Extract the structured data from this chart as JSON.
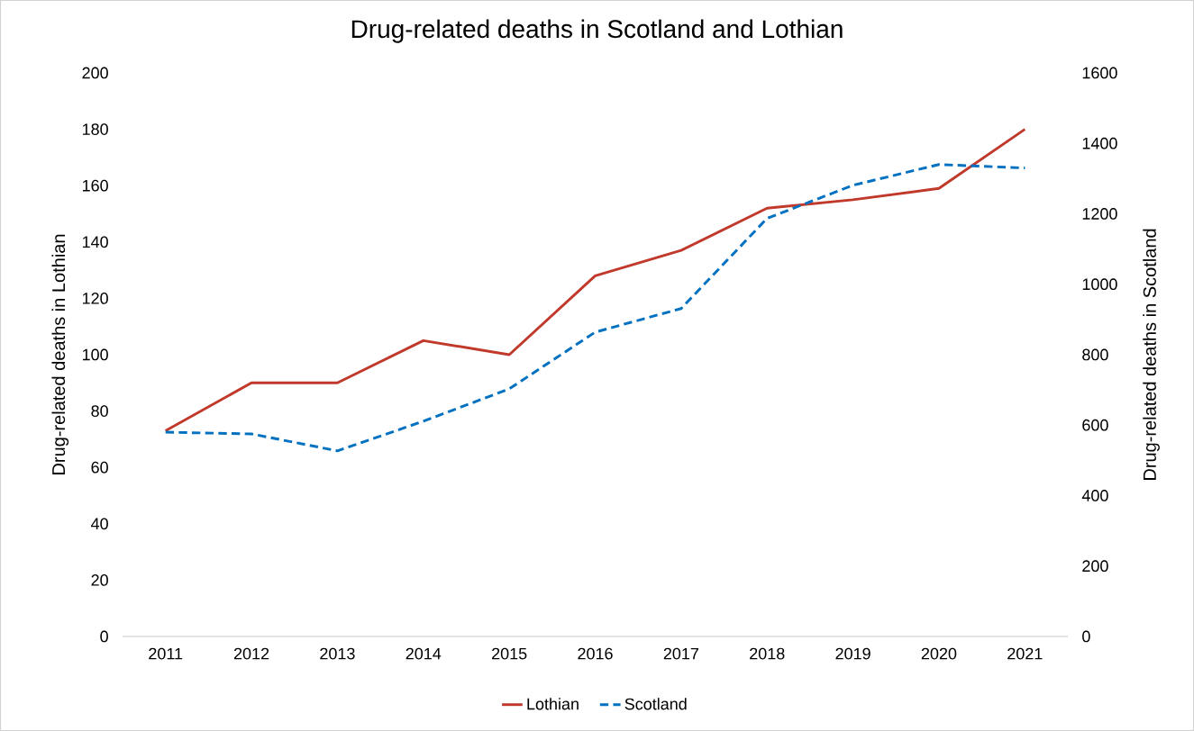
{
  "chart_data": {
    "type": "line",
    "title": "Drug-related deaths in Scotland and Lothian",
    "ylabel": "Drug-related deaths in Lothian",
    "y2label": "Drug-related deaths in Scotland",
    "categories": [
      "2011",
      "2012",
      "2013",
      "2014",
      "2015",
      "2016",
      "2017",
      "2018",
      "2019",
      "2020",
      "2021"
    ],
    "series": [
      {
        "name": "Lothian",
        "color": "#c0392b",
        "line_style": "solid",
        "values": [
          73,
          90,
          90,
          105,
          100,
          128,
          137,
          152,
          155,
          159,
          180
        ]
      },
      {
        "name": "Scotland",
        "color": "#0070c0",
        "line_style": "dashed",
        "axis": "y2",
        "values": [
          580,
          575,
          527,
          611,
          703,
          864,
          931,
          1187,
          1281,
          1340,
          1330
        ]
      }
    ],
    "ylim": [
      0,
      200
    ],
    "yticks": [
      0,
      20,
      40,
      60,
      80,
      100,
      120,
      140,
      160,
      180,
      200
    ],
    "y2lim": [
      0,
      1600
    ],
    "y2ticks": [
      0,
      200,
      400,
      600,
      800,
      1000,
      1200,
      1400,
      1600
    ],
    "grid": false,
    "marker": "none",
    "legend": "bottom"
  }
}
